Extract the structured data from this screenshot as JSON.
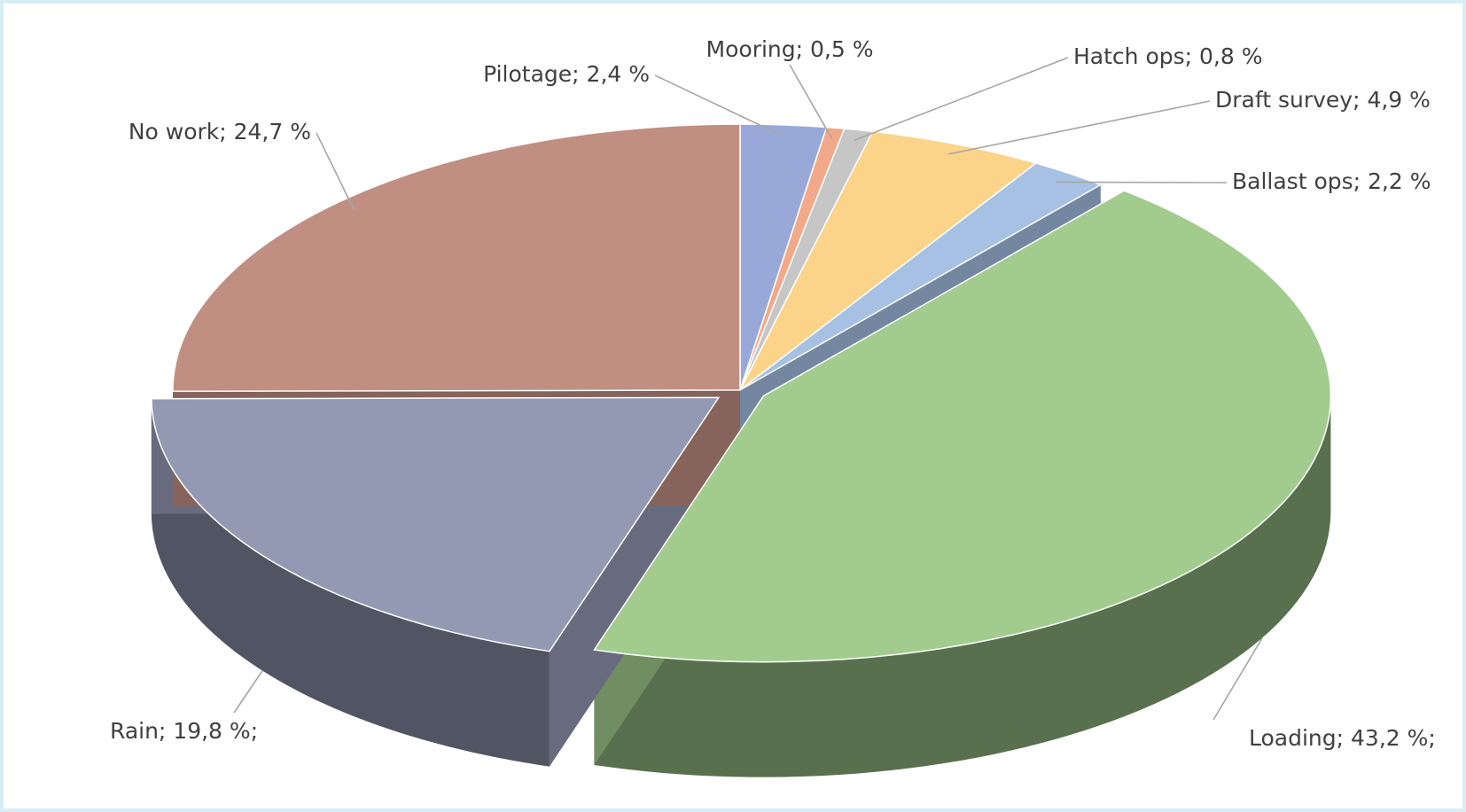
{
  "chart_data": {
    "type": "pie",
    "values": [
      2.4,
      0.5,
      0.8,
      4.9,
      2.2,
      43.2,
      19.8,
      24.7
    ],
    "value_labels": [
      "Pilotage; 2,4 %",
      "Mooring; 0,5 %",
      "Hatch ops; 0,8 %",
      "Draft survey; 4,9 %",
      "Ballast ops; 2,2 %",
      "Loading; 43,2 %;",
      "Rain; 19,8 %;",
      "No work; 24,7 %"
    ],
    "colors": [
      "#98a9d9",
      "#f1a98a",
      "#c6c6c6",
      "#fbd48a",
      "#a6c1e4",
      "#a2cb8e",
      "#9499b3",
      "#c08f82"
    ],
    "exploded": [
      5,
      6
    ]
  }
}
